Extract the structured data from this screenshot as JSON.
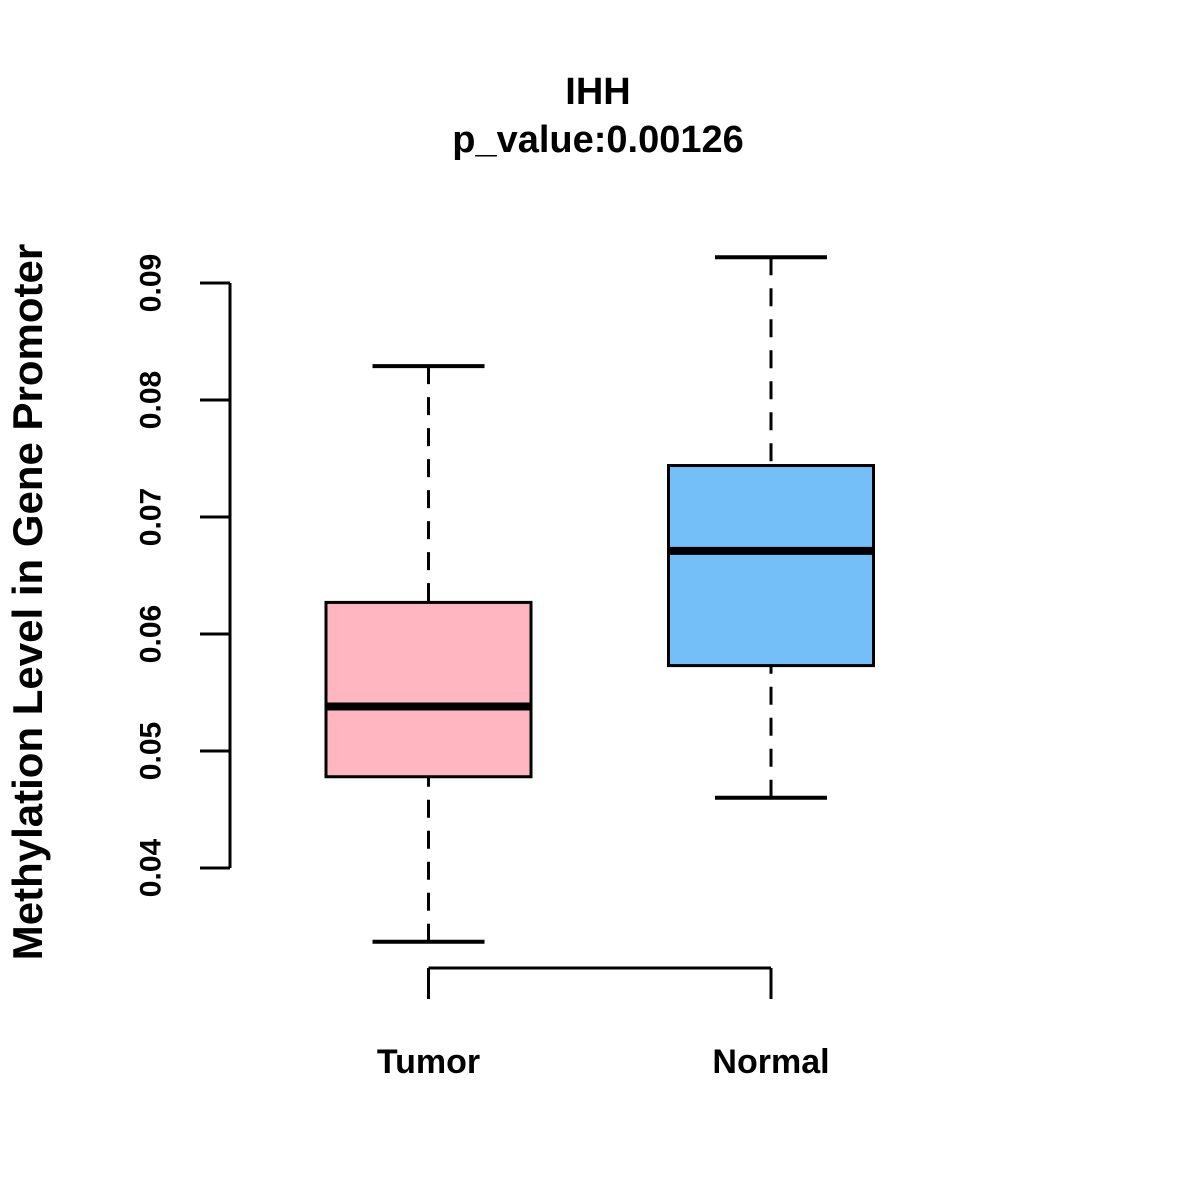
{
  "figure": {
    "title": "IHH",
    "subtitle": "p_value:0.00126",
    "y_axis_title": "Methylation Level in Gene Promoter"
  },
  "chart_data": {
    "type": "boxplot",
    "title": "IHH",
    "subtitle": "p_value:0.00126",
    "xlabel": "",
    "ylabel": "Methylation Level in Gene Promoter",
    "categories": [
      "Tumor",
      "Normal"
    ],
    "y_ticks": [
      "0.04",
      "0.05",
      "0.06",
      "0.07",
      "0.08",
      "0.09"
    ],
    "ylim": [
      0.033,
      0.093
    ],
    "grid": false,
    "legend": "none",
    "stroke_color": "#000000",
    "series": [
      {
        "name": "Tumor",
        "fill_color": "#FFB6C1",
        "whisker_low": 0.0337,
        "q1": 0.0478,
        "median": 0.0538,
        "q3": 0.0627,
        "whisker_high": 0.0829
      },
      {
        "name": "Normal",
        "fill_color": "#74BFF7",
        "whisker_low": 0.046,
        "q1": 0.0573,
        "median": 0.0671,
        "q3": 0.0744,
        "whisker_high": 0.0922
      }
    ]
  }
}
